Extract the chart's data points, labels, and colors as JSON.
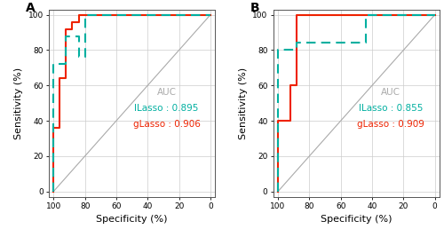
{
  "panel_A": {
    "label": "A",
    "title_auc": "AUC",
    "lLasso_label": "lLasso : 0.895",
    "gLasso_label": "gLasso : 0.906",
    "lLasso_color": "#00AFA0",
    "gLasso_color": "#EE2200",
    "lLasso_spec": [
      100,
      100,
      92,
      92,
      84,
      84,
      80,
      80,
      44,
      44,
      0
    ],
    "lLasso_sens": [
      0,
      72,
      72,
      88,
      88,
      76,
      76,
      100,
      100,
      100,
      100
    ],
    "gLasso_spec": [
      100,
      100,
      96,
      96,
      92,
      92,
      88,
      88,
      84,
      84,
      60,
      60,
      36,
      36,
      0
    ],
    "gLasso_sens": [
      0,
      36,
      36,
      64,
      64,
      92,
      92,
      96,
      96,
      100,
      100,
      100,
      100,
      100,
      100
    ]
  },
  "panel_B": {
    "label": "B",
    "title_auc": "AUC",
    "lLasso_label": "lLasso : 0.855",
    "gLasso_label": "gLasso : 0.909",
    "lLasso_color": "#00AFA0",
    "gLasso_color": "#EE2200",
    "lLasso_spec": [
      100,
      100,
      88,
      88,
      44,
      44,
      0
    ],
    "lLasso_sens": [
      0,
      80,
      80,
      84,
      84,
      100,
      100
    ],
    "gLasso_spec": [
      100,
      100,
      92,
      92,
      88,
      88,
      64,
      64,
      60,
      60,
      0
    ],
    "gLasso_sens": [
      0,
      40,
      40,
      60,
      60,
      100,
      100,
      100,
      100,
      100,
      100
    ]
  },
  "bg_color": "#FFFFFF",
  "grid_color": "#CCCCCC",
  "diagonal_color": "#AAAAAA",
  "tick_fontsize": 6.5,
  "label_fontsize": 8,
  "auc_title_fontsize": 7.5,
  "auc_label_fontsize": 7.5,
  "panel_label_fontsize": 10
}
